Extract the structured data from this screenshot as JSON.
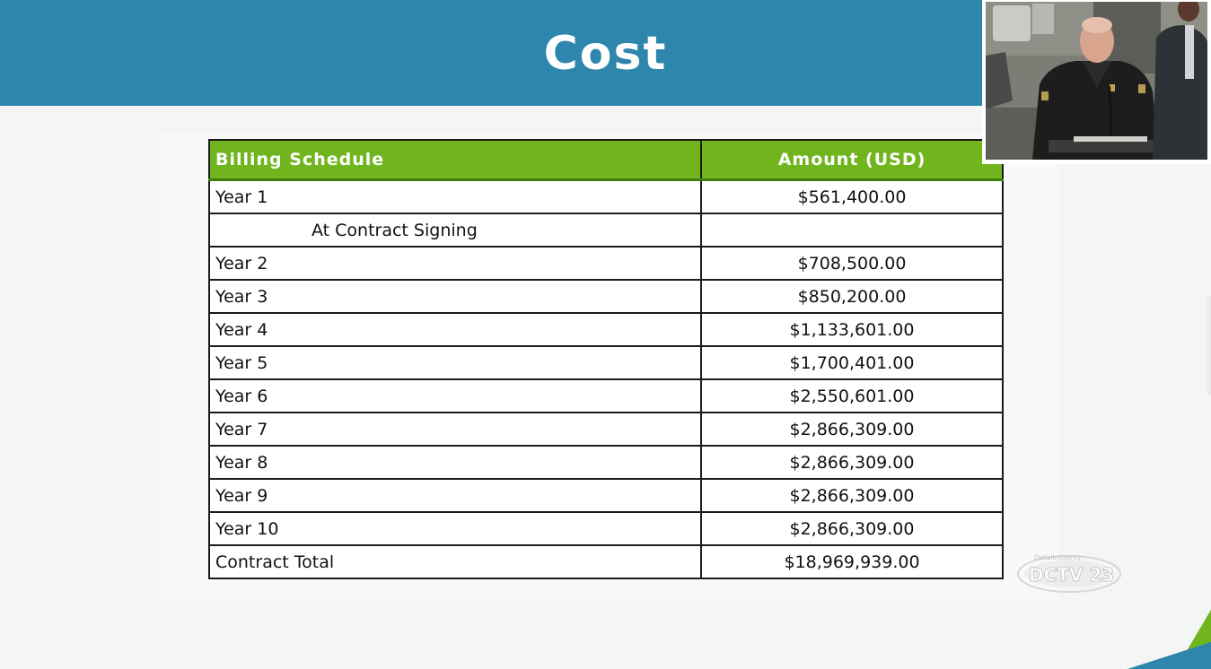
{
  "slide": {
    "title": "Cost"
  },
  "table": {
    "headers": [
      "Billing Schedule",
      "Amount (USD)"
    ],
    "rows": [
      {
        "label": "Year 1",
        "amount": "$561,400.00"
      },
      {
        "label": "At Contract Signing",
        "amount": ""
      },
      {
        "label": "Year 2",
        "amount": "$708,500.00"
      },
      {
        "label": "Year 3",
        "amount": "$850,200.00"
      },
      {
        "label": "Year 4",
        "amount": "$1,133,601.00"
      },
      {
        "label": "Year 5",
        "amount": "$1,700,401.00"
      },
      {
        "label": "Year 6",
        "amount": "$2,550,601.00"
      },
      {
        "label": "Year 7",
        "amount": "$2,866,309.00"
      },
      {
        "label": "Year 8",
        "amount": "$2,866,309.00"
      },
      {
        "label": "Year 9",
        "amount": "$2,866,309.00"
      },
      {
        "label": "Year 10",
        "amount": "$2,866,309.00"
      },
      {
        "label": "Contract Total",
        "amount": "$18,969,939.00"
      }
    ]
  },
  "overlay": {
    "watermark_text": "DCTV 23",
    "watermark_caption": "DeKalb County"
  },
  "colors": {
    "title_bar": "#2e86ad",
    "header_green": "#71b51e",
    "accent_teal": "#2e86ad",
    "accent_green": "#71b51e"
  }
}
